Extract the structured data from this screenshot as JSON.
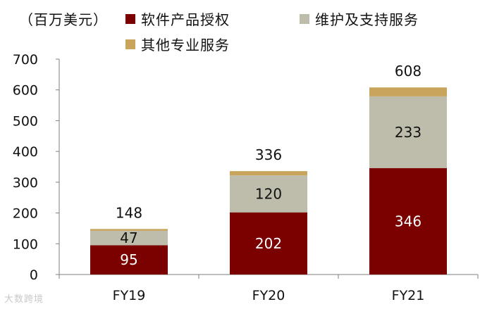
{
  "unit_label": "（百万美元）",
  "watermark": "大数跨境",
  "chart_data": {
    "type": "bar",
    "stacked": true,
    "categories": [
      "FY19",
      "FY20",
      "FY21"
    ],
    "series": [
      {
        "name": "软件产品授权",
        "values": [
          95,
          202,
          346
        ],
        "color": "#7b0000",
        "label_color": "#ffffff"
      },
      {
        "name": "维护及支持服务",
        "values": [
          47,
          120,
          233
        ],
        "color": "#bebdac",
        "label_color": "#111111"
      },
      {
        "name": "其他专业服务",
        "values": [
          6,
          14,
          29
        ],
        "color": "#c9a45c",
        "label_color": "#111111",
        "show_labels": false
      }
    ],
    "totals": [
      148,
      336,
      608
    ],
    "ylim": [
      0,
      700
    ],
    "yticks": [
      0,
      100,
      200,
      300,
      400,
      500,
      600,
      700
    ],
    "grid": false,
    "legend_position": "top"
  }
}
